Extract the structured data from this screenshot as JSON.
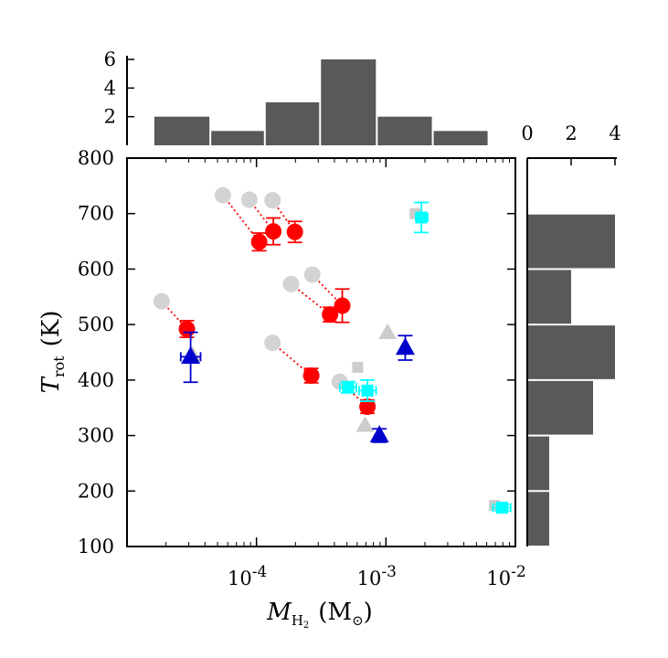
{
  "chart_data": {
    "type": "scatter",
    "title": "",
    "xlabel": {
      "symbol": "M",
      "subscript": "H",
      "subsub": "2",
      "unit": "(M",
      "unit_sub": "⊙",
      "unit_close": ")"
    },
    "ylabel": {
      "symbol": "T",
      "subscript": "rot",
      "unit": "(K)"
    },
    "x_scale": "log",
    "xlim": [
      1e-05,
      0.01
    ],
    "ylim": [
      100,
      800
    ],
    "x_ticks": [
      {
        "value": 0.0001,
        "label": "10",
        "exp": "-4"
      },
      {
        "value": 0.001,
        "label": "10",
        "exp": "-3"
      },
      {
        "value": 0.01,
        "label": "10",
        "exp": "-2"
      }
    ],
    "y_ticks": [
      "100",
      "200",
      "300",
      "400",
      "500",
      "600",
      "700",
      "800"
    ],
    "grid": false,
    "series": [
      {
        "marker": "circle",
        "color": "#d3d3d3",
        "points": [
          [
            1.85e-05,
            542
          ],
          [
            5.5e-05,
            733
          ],
          [
            8.8e-05,
            725
          ],
          [
            0.000133,
            724
          ],
          [
            0.000185,
            573
          ],
          [
            0.00027,
            590
          ],
          [
            0.000133,
            467
          ],
          [
            0.00044,
            397
          ]
        ]
      },
      {
        "marker": "square",
        "color": "#cccccc",
        "points": [
          [
            0.000605,
            423
          ],
          [
            0.00168,
            700
          ],
          [
            0.0069,
            174
          ]
        ]
      },
      {
        "marker": "triangle",
        "color": "#cccccc",
        "points": [
          [
            3.2e-05,
            445
          ],
          [
            0.00069,
            318
          ],
          [
            0.00103,
            485
          ]
        ]
      },
      {
        "marker": "circle",
        "color": "#ff0000",
        "points": [
          {
            "x": 2.9e-05,
            "y": 492,
            "yerr": 15
          },
          {
            "x": 0.000105,
            "y": 649,
            "yerr": 16
          },
          {
            "x": 0.000135,
            "y": 668,
            "yerr": 24
          },
          {
            "x": 0.000198,
            "y": 667,
            "yerr": 19
          },
          {
            "x": 0.000265,
            "y": 408,
            "yerr": 13
          },
          {
            "x": 0.00037,
            "y": 518,
            "yerr": 13
          },
          {
            "x": 0.00046,
            "y": 534,
            "yerr": 30
          },
          {
            "x": 0.00072,
            "y": 352,
            "yerr": 12
          }
        ]
      },
      {
        "marker": "square",
        "color": "#00ffff",
        "points": [
          {
            "x": 0.00051,
            "y": 387,
            "yerr": 10,
            "xerr_lo": 0.00044,
            "xerr_hi": 0.00059
          },
          {
            "x": 0.00072,
            "y": 381,
            "yerr": 19,
            "xerr_lo": 0.00062,
            "xerr_hi": 0.00084
          },
          {
            "x": 0.00188,
            "y": 693,
            "yerr": 27,
            "xerr_lo": 0.0017,
            "xerr_hi": 0.0021
          },
          {
            "x": 0.0079,
            "y": 170,
            "yerr": 6,
            "xerr_lo": 0.0067,
            "xerr_hi": 0.0092
          }
        ]
      },
      {
        "marker": "triangle",
        "color": "#0000cd",
        "points": [
          {
            "x": 3.1e-05,
            "y": 442,
            "yerr_lo": 46,
            "yerr_hi": 44,
            "xerr_lo": 2.6e-05,
            "xerr_hi": 3.7e-05
          },
          {
            "x": 0.00089,
            "y": 300,
            "yerr": 12
          },
          {
            "x": 0.00141,
            "y": 458,
            "yerr": 22
          }
        ]
      }
    ],
    "links": [
      [
        [
          1.85e-05,
          542
        ],
        [
          2.9e-05,
          492
        ]
      ],
      [
        [
          5.5e-05,
          733
        ],
        [
          0.000105,
          649
        ]
      ],
      [
        [
          8.8e-05,
          725
        ],
        [
          0.000135,
          668
        ]
      ],
      [
        [
          0.000133,
          724
        ],
        [
          0.000198,
          667
        ]
      ],
      [
        [
          0.000185,
          573
        ],
        [
          0.00037,
          518
        ]
      ],
      [
        [
          0.00027,
          590
        ],
        [
          0.00046,
          534
        ]
      ],
      [
        [
          0.000133,
          467
        ],
        [
          0.000265,
          408
        ]
      ],
      [
        [
          0.00044,
          397
        ],
        [
          0.00072,
          352
        ]
      ]
    ],
    "top_histogram": {
      "ticks": [
        "2",
        "4",
        "6"
      ],
      "ymax": 6,
      "bins": [
        {
          "lo": 1.6e-05,
          "hi": 4.4e-05,
          "count": 2
        },
        {
          "lo": 4.4e-05,
          "hi": 0.000116,
          "count": 1
        },
        {
          "lo": 0.000116,
          "hi": 0.00031,
          "count": 3
        },
        {
          "lo": 0.00031,
          "hi": 0.00085,
          "count": 6
        },
        {
          "lo": 0.00085,
          "hi": 0.0023,
          "count": 2
        },
        {
          "lo": 0.0023,
          "hi": 0.0062,
          "count": 1
        }
      ]
    },
    "right_histogram": {
      "ticks": [
        "0",
        "2",
        "4"
      ],
      "xmax": 4,
      "bins": [
        {
          "lo": 100,
          "hi": 200,
          "count": 1
        },
        {
          "lo": 200,
          "hi": 300,
          "count": 1
        },
        {
          "lo": 300,
          "hi": 400,
          "count": 3
        },
        {
          "lo": 400,
          "hi": 500,
          "count": 4
        },
        {
          "lo": 500,
          "hi": 600,
          "count": 2
        },
        {
          "lo": 600,
          "hi": 700,
          "count": 4
        }
      ]
    },
    "colors": {
      "histogram": "#595959",
      "link": "#ff0000"
    }
  }
}
